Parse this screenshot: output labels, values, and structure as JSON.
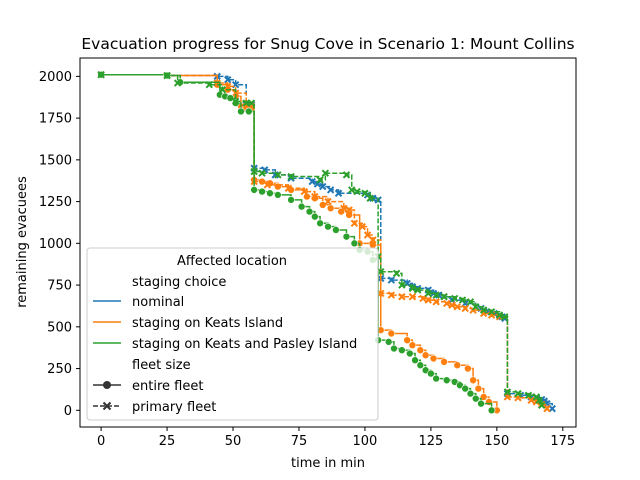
{
  "chart_data": {
    "type": "line",
    "title": "Evacuation progress for Snug Cove in Scenario 1: Mount Collins",
    "xlabel": "time in min",
    "ylabel": "remaining evacuees",
    "xlim": [
      -8,
      180
    ],
    "ylim": [
      -100,
      2110
    ],
    "xticks": [
      0,
      25,
      50,
      75,
      100,
      125,
      150,
      175
    ],
    "yticks": [
      0,
      250,
      500,
      750,
      1000,
      1250,
      1500,
      1750,
      2000
    ],
    "grid": false,
    "legend": {
      "title": "Affected location",
      "placement": "lower-left",
      "group1_title": "staging choice",
      "group2_title": "fleet size",
      "entries": [
        {
          "label": "nominal",
          "color": "#1f77b4"
        },
        {
          "label": "staging on Keats Island",
          "color": "#ff7f0e"
        },
        {
          "label": "staging on Keats and Pasley Island",
          "color": "#2ca02c"
        }
      ],
      "styles": [
        {
          "label": "entire fleet",
          "dash": "solid",
          "marker": "circle"
        },
        {
          "label": "primary fleet",
          "dash": "dashed",
          "marker": "x"
        }
      ]
    },
    "series": [
      {
        "name": "nominal",
        "style": "primary fleet",
        "color": "#1f77b4",
        "points": [
          [
            0,
            2010
          ],
          [
            25,
            2005
          ],
          [
            44,
            2000
          ],
          [
            48,
            1980
          ],
          [
            51,
            1950
          ],
          [
            55,
            1830
          ],
          [
            57,
            1830
          ],
          [
            58,
            1450
          ],
          [
            62,
            1440
          ],
          [
            66,
            1410
          ],
          [
            72,
            1390
          ],
          [
            80,
            1370
          ],
          [
            82,
            1355
          ],
          [
            84,
            1340
          ],
          [
            87,
            1320
          ],
          [
            90,
            1300
          ],
          [
            101,
            1290
          ],
          [
            103,
            1270
          ],
          [
            105,
            1260
          ],
          [
            106,
            790
          ],
          [
            110,
            780
          ],
          [
            116,
            760
          ],
          [
            118,
            740
          ],
          [
            120,
            730
          ],
          [
            124,
            720
          ],
          [
            126,
            700
          ],
          [
            128,
            690
          ],
          [
            130,
            680
          ],
          [
            133,
            660
          ],
          [
            138,
            640
          ],
          [
            142,
            620
          ],
          [
            144,
            610
          ],
          [
            146,
            590
          ],
          [
            149,
            580
          ],
          [
            152,
            560
          ],
          [
            153,
            550
          ],
          [
            154,
            100
          ],
          [
            159,
            90
          ],
          [
            163,
            80
          ],
          [
            165,
            75
          ],
          [
            167,
            65
          ],
          [
            168,
            55
          ],
          [
            169,
            40
          ],
          [
            171,
            10
          ]
        ]
      },
      {
        "name": "staging on Keats Island",
        "style": "entire fleet",
        "color": "#ff7f0e",
        "points": [
          [
            0,
            2010
          ],
          [
            25,
            2005
          ],
          [
            44,
            1950
          ],
          [
            48,
            1920
          ],
          [
            51,
            1880
          ],
          [
            53,
            1820
          ],
          [
            55,
            1810
          ],
          [
            57,
            1810
          ],
          [
            58,
            1380
          ],
          [
            61,
            1370
          ],
          [
            64,
            1360
          ],
          [
            67,
            1340
          ],
          [
            72,
            1320
          ],
          [
            78,
            1280
          ],
          [
            81,
            1270
          ],
          [
            84,
            1230
          ],
          [
            87,
            1210
          ],
          [
            91,
            1190
          ],
          [
            94,
            1170
          ],
          [
            98,
            1000
          ],
          [
            103,
            990
          ],
          [
            106,
            480
          ],
          [
            110,
            460
          ],
          [
            116,
            420
          ],
          [
            118,
            390
          ],
          [
            121,
            360
          ],
          [
            123,
            330
          ],
          [
            126,
            310
          ],
          [
            130,
            290
          ],
          [
            135,
            270
          ],
          [
            139,
            250
          ],
          [
            141,
            180
          ],
          [
            143,
            130
          ],
          [
            145,
            80
          ],
          [
            147,
            50
          ],
          [
            150,
            0
          ]
        ]
      },
      {
        "name": "staging on Keats Island",
        "style": "primary fleet",
        "color": "#ff7f0e",
        "points": [
          [
            0,
            2010
          ],
          [
            25,
            2005
          ],
          [
            44,
            1960
          ],
          [
            48,
            1940
          ],
          [
            51,
            1900
          ],
          [
            55,
            1820
          ],
          [
            57,
            1820
          ],
          [
            58,
            1370
          ],
          [
            63,
            1350
          ],
          [
            71,
            1330
          ],
          [
            77,
            1310
          ],
          [
            81,
            1280
          ],
          [
            86,
            1250
          ],
          [
            92,
            1210
          ],
          [
            94,
            1200
          ],
          [
            96,
            1120
          ],
          [
            99,
            1100
          ],
          [
            101,
            1050
          ],
          [
            103,
            1020
          ],
          [
            106,
            700
          ],
          [
            110,
            690
          ],
          [
            114,
            680
          ],
          [
            118,
            680
          ],
          [
            122,
            670
          ],
          [
            124,
            660
          ],
          [
            127,
            650
          ],
          [
            131,
            640
          ],
          [
            133,
            630
          ],
          [
            135,
            620
          ],
          [
            138,
            610
          ],
          [
            141,
            600
          ],
          [
            145,
            580
          ],
          [
            148,
            570
          ],
          [
            151,
            560
          ],
          [
            154,
            80
          ],
          [
            158,
            75
          ],
          [
            163,
            60
          ],
          [
            165,
            50
          ],
          [
            167,
            35
          ],
          [
            169,
            10
          ]
        ]
      },
      {
        "name": "staging on Keats and Pasley Island",
        "style": "entire fleet",
        "color": "#2ca02c",
        "points": [
          [
            0,
            2010
          ],
          [
            25,
            2005
          ],
          [
            30,
            1965
          ],
          [
            45,
            1890
          ],
          [
            47,
            1880
          ],
          [
            49,
            1870
          ],
          [
            51,
            1840
          ],
          [
            53,
            1790
          ],
          [
            56,
            1790
          ],
          [
            58,
            1320
          ],
          [
            61,
            1310
          ],
          [
            64,
            1300
          ],
          [
            67,
            1290
          ],
          [
            72,
            1260
          ],
          [
            76,
            1220
          ],
          [
            79,
            1190
          ],
          [
            81,
            1160
          ],
          [
            83,
            1120
          ],
          [
            86,
            1100
          ],
          [
            89,
            1080
          ],
          [
            93,
            1040
          ],
          [
            96,
            1000
          ],
          [
            98,
            960
          ],
          [
            101,
            950
          ],
          [
            103,
            900
          ],
          [
            105,
            420
          ],
          [
            109,
            410
          ],
          [
            111,
            370
          ],
          [
            114,
            360
          ],
          [
            117,
            340
          ],
          [
            119,
            300
          ],
          [
            121,
            270
          ],
          [
            123,
            240
          ],
          [
            125,
            220
          ],
          [
            127,
            190
          ],
          [
            131,
            180
          ],
          [
            134,
            170
          ],
          [
            136,
            150
          ],
          [
            138,
            130
          ],
          [
            140,
            100
          ],
          [
            142,
            70
          ],
          [
            144,
            40
          ],
          [
            148,
            0
          ]
        ]
      },
      {
        "name": "staging on Keats and Pasley Island",
        "style": "primary fleet",
        "color": "#2ca02c",
        "points": [
          [
            0,
            2010
          ],
          [
            25,
            2005
          ],
          [
            29,
            1960
          ],
          [
            41,
            1950
          ],
          [
            46,
            1920
          ],
          [
            51,
            1850
          ],
          [
            55,
            1840
          ],
          [
            57,
            1840
          ],
          [
            58,
            1430
          ],
          [
            61,
            1420
          ],
          [
            67,
            1410
          ],
          [
            72,
            1400
          ],
          [
            83,
            1380
          ],
          [
            85,
            1420
          ],
          [
            93,
            1410
          ],
          [
            95,
            1320
          ],
          [
            97,
            1310
          ],
          [
            100,
            1300
          ],
          [
            102,
            1270
          ],
          [
            105,
            920
          ],
          [
            106,
            830
          ],
          [
            112,
            820
          ],
          [
            114,
            750
          ],
          [
            118,
            730
          ],
          [
            120,
            720
          ],
          [
            124,
            700
          ],
          [
            127,
            690
          ],
          [
            130,
            680
          ],
          [
            134,
            670
          ],
          [
            137,
            660
          ],
          [
            140,
            650
          ],
          [
            142,
            620
          ],
          [
            145,
            600
          ],
          [
            148,
            590
          ],
          [
            151,
            570
          ],
          [
            153,
            560
          ],
          [
            154,
            110
          ],
          [
            158,
            100
          ],
          [
            162,
            90
          ],
          [
            165,
            80
          ],
          [
            166,
            60
          ],
          [
            167,
            30
          ]
        ]
      }
    ]
  }
}
